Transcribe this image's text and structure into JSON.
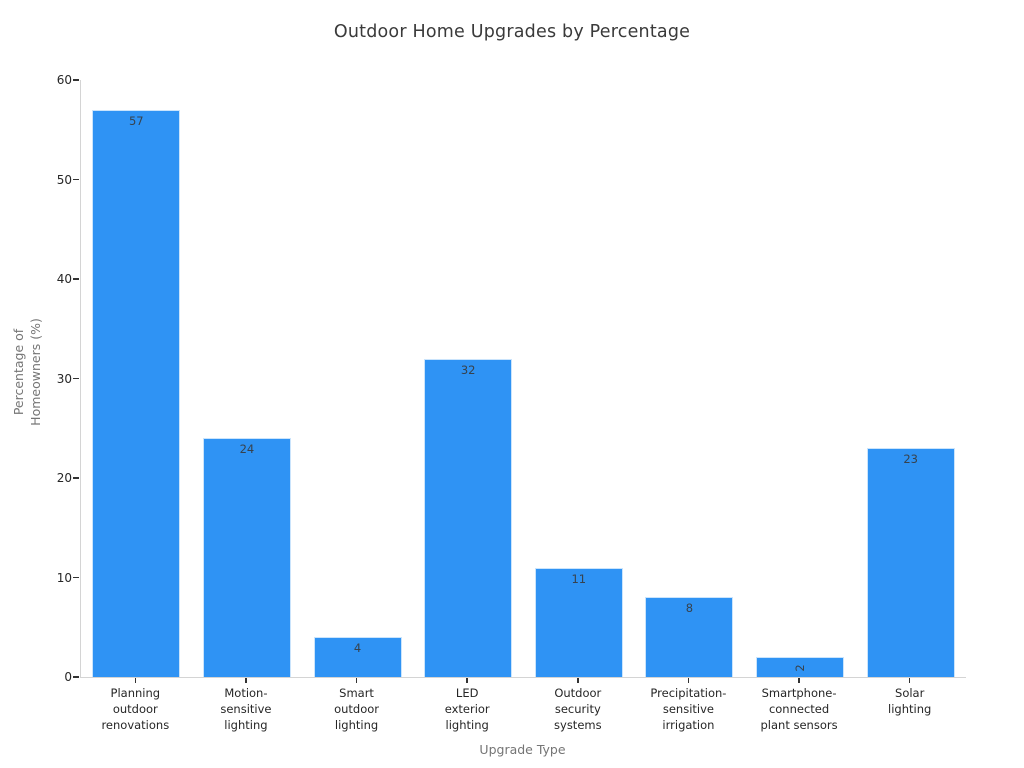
{
  "colors": {
    "bar": "#2f93f4",
    "axis_line": "#d4d4d4",
    "tick": "#333333",
    "tick_label": "#262626",
    "axis_title": "#757575",
    "title_text": "#3a3a3a",
    "value_label": "#37424d"
  },
  "chart_data": {
    "type": "bar",
    "title": "Outdoor Home Upgrades by Percentage",
    "xlabel": "Upgrade Type",
    "ylabel": "Percentage of Homeowners (%)",
    "ylabel_lines": [
      "Percentage of",
      "Homeowners (%)"
    ],
    "categories": [
      "Planning outdoor renovations",
      "Motion-sensitive lighting",
      "Smart outdoor lighting",
      "LED exterior lighting",
      "Outdoor security systems",
      "Precipitation-sensitive irrigation",
      "Smartphone-connected plant sensors",
      "Solar lighting"
    ],
    "category_tick_lines": [
      [
        "Planning",
        "outdoor",
        "renovations"
      ],
      [
        "Motion-",
        "sensitive",
        "lighting"
      ],
      [
        "Smart",
        "outdoor",
        "lighting"
      ],
      [
        "LED",
        "exterior",
        "lighting"
      ],
      [
        "Outdoor",
        "security",
        "systems"
      ],
      [
        "Precipitation-",
        "sensitive",
        "irrigation"
      ],
      [
        "Smartphone-",
        "connected",
        "plant sensors"
      ],
      [
        "Solar",
        "lighting"
      ]
    ],
    "values": [
      57,
      24,
      4,
      32,
      11,
      8,
      2,
      23
    ],
    "ylim": [
      0,
      60
    ],
    "yticks": [
      0,
      10,
      20,
      30,
      40,
      50,
      60
    ],
    "bar_value_labels_shown": true,
    "grid": false,
    "legend": "none"
  }
}
